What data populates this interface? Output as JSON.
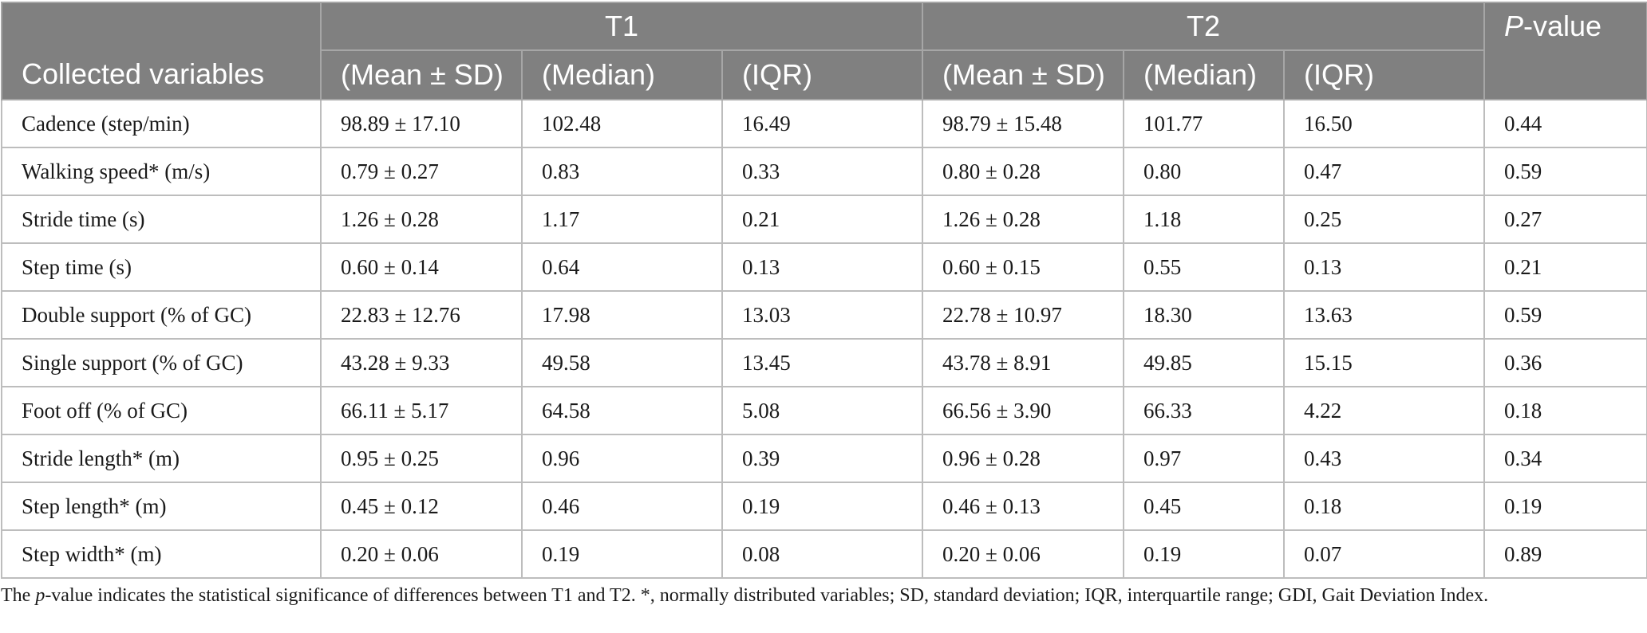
{
  "header": {
    "first_col": "Collected variables",
    "group1": "T1",
    "group2": "T2",
    "pvalue_italic": "P",
    "pvalue_rest": "-value",
    "sub": [
      "(Mean ± SD)",
      "(Median)",
      "(IQR)",
      "(Mean ± SD)",
      "(Median)",
      "(IQR)"
    ]
  },
  "rows": [
    [
      "Cadence (step/min)",
      "98.89 ± 17.10",
      "102.48",
      "16.49",
      "98.79 ± 15.48",
      "101.77",
      "16.50",
      "0.44"
    ],
    [
      "Walking speed* (m/s)",
      "0.79 ± 0.27",
      "0.83",
      "0.33",
      "0.80 ± 0.28",
      "0.80",
      "0.47",
      "0.59"
    ],
    [
      "Stride time (s)",
      "1.26 ± 0.28",
      "1.17",
      "0.21",
      "1.26 ± 0.28",
      "1.18",
      "0.25",
      "0.27"
    ],
    [
      "Step time (s)",
      "0.60 ± 0.14",
      "0.64",
      "0.13",
      "0.60 ± 0.15",
      "0.55",
      "0.13",
      "0.21"
    ],
    [
      "Double support (% of GC)",
      "22.83 ± 12.76",
      "17.98",
      "13.03",
      "22.78 ± 10.97",
      "18.30",
      "13.63",
      "0.59"
    ],
    [
      "Single support (% of GC)",
      "43.28 ± 9.33",
      "49.58",
      "13.45",
      "43.78 ± 8.91",
      "49.85",
      "15.15",
      "0.36"
    ],
    [
      "Foot off (% of GC)",
      "66.11 ± 5.17",
      "64.58",
      "5.08",
      "66.56 ± 3.90",
      "66.33",
      "4.22",
      "0.18"
    ],
    [
      "Stride length* (m)",
      "0.95 ± 0.25",
      "0.96",
      "0.39",
      "0.96 ± 0.28",
      "0.97",
      "0.43",
      "0.34"
    ],
    [
      "Step length* (m)",
      "0.45 ± 0.12",
      "0.46",
      "0.19",
      "0.46 ± 0.13",
      "0.45",
      "0.18",
      "0.19"
    ],
    [
      "Step width* (m)",
      "0.20 ± 0.06",
      "0.19",
      "0.08",
      "0.20 ± 0.06",
      "0.19",
      "0.07",
      "0.89"
    ]
  ],
  "footnote": {
    "prefix": "The ",
    "italic": "p",
    "rest": "-value indicates the statistical significance of differences between T1 and T2. *, normally distributed variables; SD, standard deviation; IQR, interquartile range; GDI, Gait Deviation Index."
  }
}
